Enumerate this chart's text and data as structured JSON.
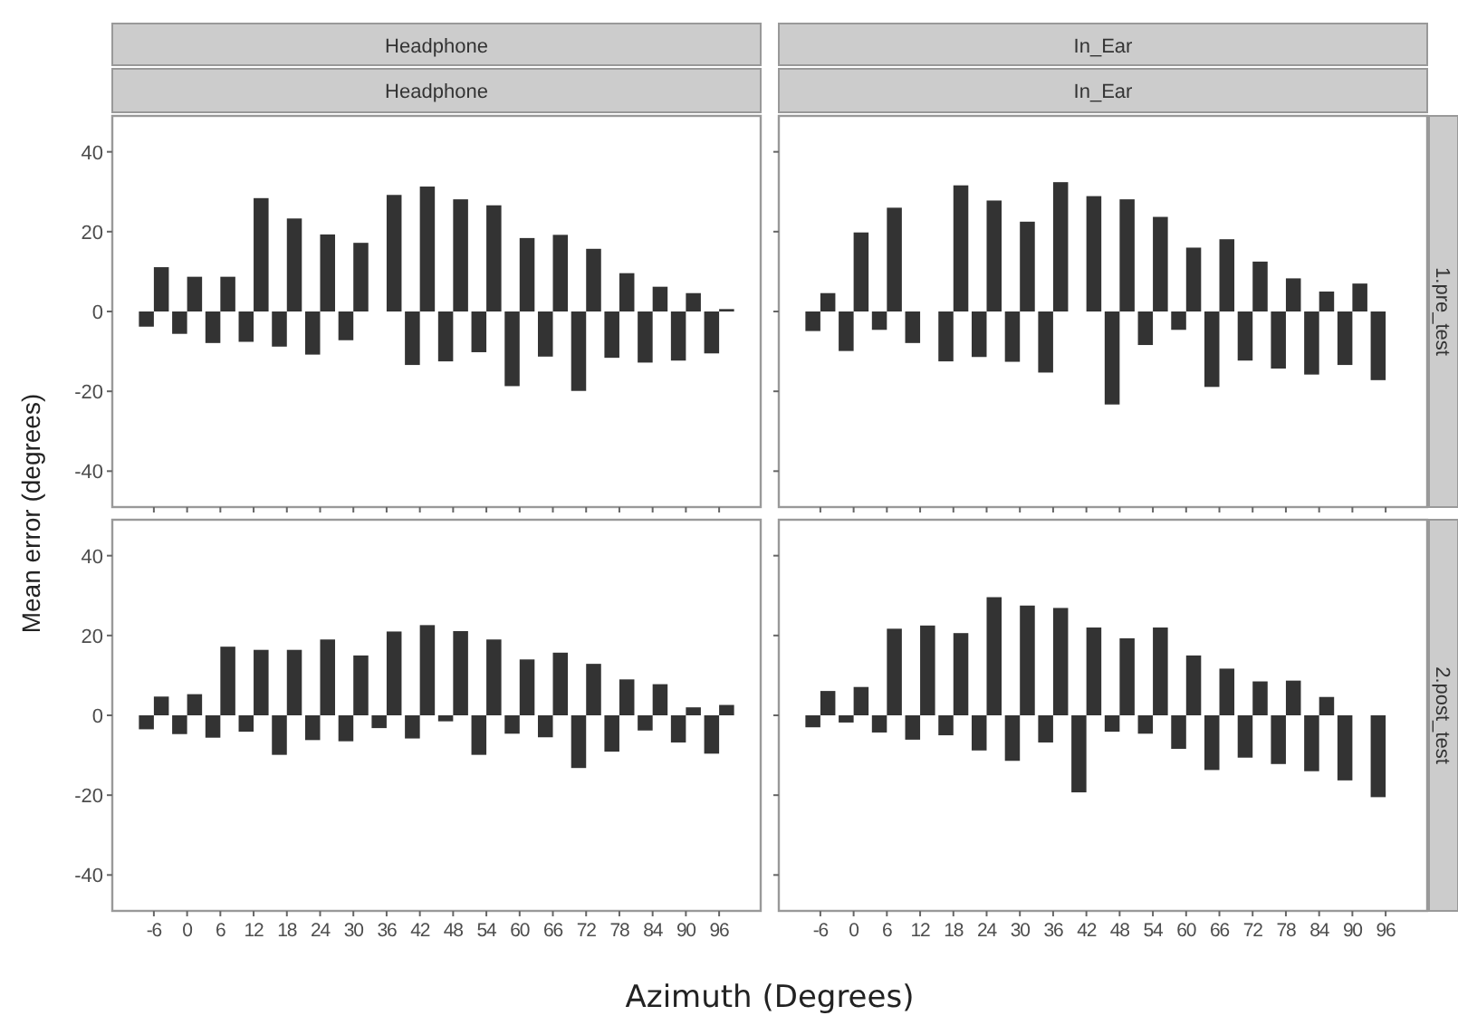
{
  "chart_data": [
    {
      "type": "bar",
      "title": "Headphone",
      "subtitle": "Headphone",
      "ylabel": "Mean error (degrees)",
      "tick_labels": "y",
      "categories": [
        "-6",
        "0",
        "6",
        "12",
        "18",
        "24",
        "30",
        "36",
        "42",
        "48",
        "54",
        "60",
        "66",
        "72",
        "78",
        "84",
        "90",
        "96"
      ],
      "ylim": [
        -49,
        49
      ],
      "yticks": [
        -40,
        -20,
        0,
        20,
        40
      ],
      "series": [
        {
          "color": "#333333",
          "values": [
            -3.8,
            -5.6,
            -7.9,
            -7.6,
            -8.8,
            -10.8,
            -7.2,
            0,
            -13.4,
            -12.5,
            -10.2,
            -18.7,
            -11.3,
            -19.9,
            -11.6,
            -12.8,
            -12.3,
            -10.5
          ]
        },
        {
          "color": "#333333",
          "values": [
            11.1,
            8.7,
            8.7,
            28.4,
            23.3,
            19.3,
            17.2,
            29.2,
            31.3,
            28.1,
            26.6,
            18.4,
            19.2,
            15.7,
            9.6,
            6.2,
            4.6,
            0.6
          ]
        }
      ]
    },
    {
      "type": "bar",
      "title": "In_Ear",
      "subtitle": "In_Ear",
      "y2label": "1.pre_test",
      "tick_labels": false,
      "categories": [
        "-6",
        "0",
        "6",
        "12",
        "18",
        "24",
        "30",
        "36",
        "42",
        "48",
        "54",
        "60",
        "66",
        "72",
        "78",
        "84",
        "90",
        "96"
      ],
      "ylim": [
        -49,
        49
      ],
      "yticks": [
        -40,
        -20,
        0,
        20,
        40
      ],
      "series": [
        {
          "color": "#333333",
          "values": [
            -4.9,
            -9.9,
            -4.6,
            -7.9,
            -12.5,
            -11.4,
            -12.6,
            -15.3,
            0,
            -23.3,
            -8.4,
            -4.6,
            -18.9,
            -12.3,
            -14.3,
            -15.8,
            -13.4,
            -17.2
          ]
        },
        {
          "color": "#333333",
          "values": [
            4.6,
            19.8,
            26.0,
            0,
            31.6,
            27.8,
            22.5,
            32.4,
            28.9,
            28.1,
            23.7,
            16.0,
            18.1,
            12.5,
            8.3,
            5.0,
            7.0,
            0
          ]
        }
      ]
    },
    {
      "type": "bar",
      "categories": [
        "-6",
        "0",
        "6",
        "12",
        "18",
        "24",
        "30",
        "36",
        "42",
        "48",
        "54",
        "60",
        "66",
        "72",
        "78",
        "84",
        "90",
        "96"
      ],
      "ylim": [
        -49,
        49
      ],
      "yticks": [
        -40,
        -20,
        0,
        20,
        40
      ],
      "series": [
        {
          "color": "#333333",
          "values": [
            -3.5,
            -4.7,
            -5.6,
            -4.1,
            -9.9,
            -6.2,
            -6.5,
            -3.2,
            -5.8,
            -1.5,
            -9.9,
            -4.6,
            -5.5,
            -13.2,
            -9.1,
            -3.8,
            -6.8,
            -9.6
          ]
        },
        {
          "color": "#333333",
          "values": [
            4.7,
            5.3,
            17.2,
            16.4,
            16.4,
            19.0,
            15.0,
            21.0,
            22.6,
            21.1,
            19.0,
            14.0,
            15.7,
            12.9,
            9.0,
            7.8,
            2.0,
            2.6
          ]
        }
      ]
    },
    {
      "type": "bar",
      "xlabel": "Azimuth (Degrees)",
      "y2label": "2.post_test",
      "tick_labels": "x",
      "categories": [
        "-6",
        "0",
        "6",
        "12",
        "18",
        "24",
        "30",
        "36",
        "42",
        "48",
        "54",
        "60",
        "66",
        "72",
        "78",
        "84",
        "90",
        "96"
      ],
      "ylim": [
        -49,
        49
      ],
      "yticks": [
        -40,
        -20,
        0,
        20,
        40
      ],
      "series": [
        {
          "color": "#333333",
          "values": [
            -3.0,
            -1.8,
            -4.3,
            -6.1,
            -5.0,
            -8.8,
            -11.4,
            -6.8,
            -19.3,
            -4.1,
            -4.6,
            -8.4,
            -13.7,
            -10.6,
            -12.2,
            -14.0,
            -16.3,
            -20.5
          ]
        },
        {
          "color": "#333333",
          "values": [
            6.1,
            7.1,
            21.7,
            22.5,
            20.6,
            29.6,
            27.5,
            26.9,
            22.0,
            19.3,
            22.0,
            15.0,
            11.7,
            8.5,
            8.7,
            4.6,
            0,
            0
          ]
        }
      ]
    }
  ]
}
